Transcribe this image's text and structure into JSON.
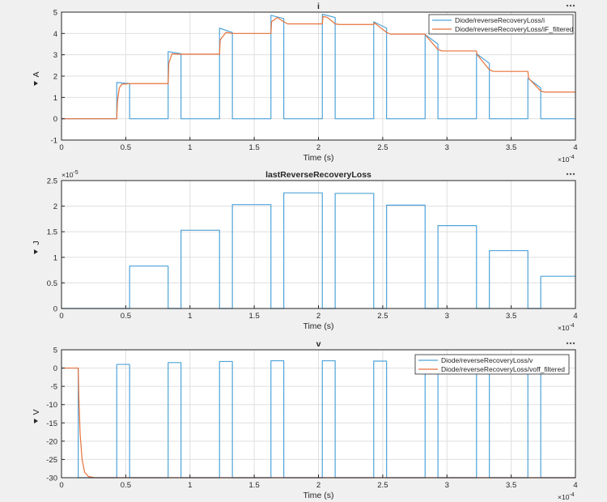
{
  "chart_data": [
    {
      "type": "line",
      "title": "i",
      "xlabel": "Time (s)",
      "ylabel": "A",
      "x_exponent": "×10",
      "x_exponent_power": "-4",
      "xlim": [
        0,
        4
      ],
      "ylim": [
        -1,
        5
      ],
      "xticks": [
        "0",
        "0.5",
        "1",
        "1.5",
        "2",
        "2.5",
        "3",
        "3.5",
        "4"
      ],
      "yticks": [
        "-1",
        "0",
        "1",
        "2",
        "3",
        "4",
        "5"
      ],
      "grid": true,
      "legend_position": "top-right",
      "series": [
        {
          "name": "Diode/reverseRecoveryLoss/i",
          "color": "#4fa3d9",
          "points": [
            [
              0,
              0
            ],
            [
              0.43,
              0
            ],
            [
              0.43,
              1.7
            ],
            [
              0.53,
              1.65
            ],
            [
              0.53,
              0
            ],
            [
              0.83,
              0
            ],
            [
              0.83,
              3.15
            ],
            [
              0.93,
              3.05
            ],
            [
              0.93,
              0
            ],
            [
              1.23,
              0
            ],
            [
              1.23,
              4.25
            ],
            [
              1.33,
              4.05
            ],
            [
              1.33,
              0
            ],
            [
              1.63,
              0
            ],
            [
              1.63,
              4.85
            ],
            [
              1.73,
              4.7
            ],
            [
              1.73,
              0
            ],
            [
              2.03,
              0
            ],
            [
              2.03,
              4.9
            ],
            [
              2.13,
              4.75
            ],
            [
              2.13,
              0
            ],
            [
              2.43,
              0
            ],
            [
              2.43,
              4.55
            ],
            [
              2.53,
              4.25
            ],
            [
              2.53,
              0
            ],
            [
              2.83,
              0
            ],
            [
              2.83,
              3.95
            ],
            [
              2.93,
              3.5
            ],
            [
              2.93,
              0
            ],
            [
              3.23,
              0
            ],
            [
              3.23,
              3.05
            ],
            [
              3.33,
              2.6
            ],
            [
              3.33,
              0
            ],
            [
              3.63,
              0
            ],
            [
              3.63,
              1.9
            ],
            [
              3.73,
              1.45
            ],
            [
              3.73,
              0
            ],
            [
              4.0,
              0
            ]
          ]
        },
        {
          "name": "Diode/reverseRecoveryLoss/iF_filtered",
          "color": "#e8723a",
          "points": [
            [
              0,
              0
            ],
            [
              0.43,
              0
            ],
            [
              0.435,
              0.8
            ],
            [
              0.45,
              1.45
            ],
            [
              0.47,
              1.62
            ],
            [
              0.53,
              1.65
            ],
            [
              0.83,
              1.65
            ],
            [
              0.835,
              2.6
            ],
            [
              0.86,
              3.05
            ],
            [
              0.9,
              3.03
            ],
            [
              1.23,
              3.03
            ],
            [
              1.235,
              3.7
            ],
            [
              1.28,
              4.05
            ],
            [
              1.33,
              4.0
            ],
            [
              1.63,
              4.0
            ],
            [
              1.635,
              4.55
            ],
            [
              1.68,
              4.75
            ],
            [
              1.73,
              4.55
            ],
            [
              1.76,
              4.45
            ],
            [
              2.03,
              4.45
            ],
            [
              2.035,
              4.8
            ],
            [
              2.07,
              4.75
            ],
            [
              2.13,
              4.45
            ],
            [
              2.16,
              4.42
            ],
            [
              2.43,
              4.42
            ],
            [
              2.435,
              4.5
            ],
            [
              2.53,
              4.05
            ],
            [
              2.56,
              3.97
            ],
            [
              2.83,
              3.97
            ],
            [
              2.835,
              3.9
            ],
            [
              2.93,
              3.25
            ],
            [
              2.96,
              3.18
            ],
            [
              3.23,
              3.18
            ],
            [
              3.235,
              3.0
            ],
            [
              3.33,
              2.3
            ],
            [
              3.36,
              2.22
            ],
            [
              3.63,
              2.22
            ],
            [
              3.635,
              1.9
            ],
            [
              3.73,
              1.3
            ],
            [
              3.76,
              1.25
            ],
            [
              4.0,
              1.25
            ]
          ]
        }
      ]
    },
    {
      "type": "line",
      "title": "lastReverseRecoveryLoss",
      "xlabel": "Time (s)",
      "ylabel": "J",
      "x_exponent": "×10",
      "x_exponent_power": "-4",
      "y_exponent": "×10",
      "y_exponent_power": "-5",
      "xlim": [
        0,
        4
      ],
      "ylim": [
        0,
        2.5
      ],
      "xticks": [
        "0",
        "0.5",
        "1",
        "1.5",
        "2",
        "2.5",
        "3",
        "3.5",
        "4"
      ],
      "yticks": [
        "0",
        "0.5",
        "1",
        "1.5",
        "2",
        "2.5"
      ],
      "grid": true,
      "series": [
        {
          "name": "",
          "color": "#4fa3d9",
          "points": [
            [
              0,
              0
            ],
            [
              0.53,
              0
            ],
            [
              0.53,
              0.83
            ],
            [
              0.83,
              0.83
            ],
            [
              0.83,
              0
            ],
            [
              0.93,
              0
            ],
            [
              0.93,
              1.53
            ],
            [
              1.23,
              1.53
            ],
            [
              1.23,
              0
            ],
            [
              1.33,
              0
            ],
            [
              1.33,
              2.03
            ],
            [
              1.63,
              2.03
            ],
            [
              1.63,
              0
            ],
            [
              1.73,
              0
            ],
            [
              1.73,
              2.26
            ],
            [
              2.03,
              2.26
            ],
            [
              2.03,
              0
            ],
            [
              2.13,
              0
            ],
            [
              2.13,
              2.25
            ],
            [
              2.43,
              2.25
            ],
            [
              2.43,
              0
            ],
            [
              2.53,
              0
            ],
            [
              2.53,
              2.02
            ],
            [
              2.83,
              2.02
            ],
            [
              2.83,
              0
            ],
            [
              2.93,
              0
            ],
            [
              2.93,
              1.62
            ],
            [
              3.23,
              1.62
            ],
            [
              3.23,
              0
            ],
            [
              3.33,
              0
            ],
            [
              3.33,
              1.13
            ],
            [
              3.63,
              1.13
            ],
            [
              3.63,
              0
            ],
            [
              3.73,
              0
            ],
            [
              3.73,
              0.63
            ],
            [
              4.0,
              0.63
            ]
          ]
        }
      ]
    },
    {
      "type": "line",
      "title": "v",
      "xlabel": "Time (s)",
      "ylabel": "V",
      "x_exponent": "×10",
      "x_exponent_power": "-4",
      "xlim": [
        0,
        4
      ],
      "ylim": [
        -30,
        5
      ],
      "xticks": [
        "0",
        "0.5",
        "1",
        "1.5",
        "2",
        "2.5",
        "3",
        "3.5",
        "4"
      ],
      "yticks": [
        "-30",
        "-25",
        "-20",
        "-15",
        "-10",
        "-5",
        "0",
        "5"
      ],
      "grid": true,
      "legend_position": "top-right",
      "series": [
        {
          "name": "Diode/reverseRecoveryLoss/v",
          "color": "#4fa3d9",
          "points": [
            [
              0,
              0
            ],
            [
              0.13,
              0
            ],
            [
              0.13,
              -30
            ],
            [
              0.43,
              -30
            ],
            [
              0.43,
              1.0
            ],
            [
              0.53,
              1.0
            ],
            [
              0.53,
              -30
            ],
            [
              0.83,
              -30
            ],
            [
              0.83,
              1.5
            ],
            [
              0.93,
              1.5
            ],
            [
              0.93,
              -30
            ],
            [
              1.23,
              -30
            ],
            [
              1.23,
              1.8
            ],
            [
              1.33,
              1.8
            ],
            [
              1.33,
              -30
            ],
            [
              1.63,
              -30
            ],
            [
              1.63,
              2.0
            ],
            [
              1.73,
              2.0
            ],
            [
              1.73,
              -30
            ],
            [
              2.03,
              -30
            ],
            [
              2.03,
              2.0
            ],
            [
              2.13,
              2.0
            ],
            [
              2.13,
              -30
            ],
            [
              2.43,
              -30
            ],
            [
              2.43,
              1.9
            ],
            [
              2.53,
              1.9
            ],
            [
              2.53,
              -30
            ],
            [
              2.83,
              -30
            ],
            [
              2.83,
              1.5
            ],
            [
              2.93,
              1.5
            ],
            [
              2.93,
              -30
            ],
            [
              3.23,
              -30
            ],
            [
              3.23,
              1.1
            ],
            [
              3.33,
              1.1
            ],
            [
              3.33,
              -30
            ],
            [
              3.63,
              -30
            ],
            [
              3.63,
              0.5
            ],
            [
              3.73,
              0.5
            ],
            [
              3.73,
              -30
            ],
            [
              4.0,
              -30
            ]
          ]
        },
        {
          "name": "Diode/reverseRecoveryLoss/voff_filtered",
          "color": "#e8723a",
          "points": [
            [
              0,
              0
            ],
            [
              0.13,
              0
            ],
            [
              0.135,
              -8
            ],
            [
              0.145,
              -18
            ],
            [
              0.16,
              -25
            ],
            [
              0.18,
              -28.5
            ],
            [
              0.21,
              -29.7
            ],
            [
              0.26,
              -30
            ],
            [
              4.0,
              -30
            ]
          ]
        }
      ]
    }
  ]
}
